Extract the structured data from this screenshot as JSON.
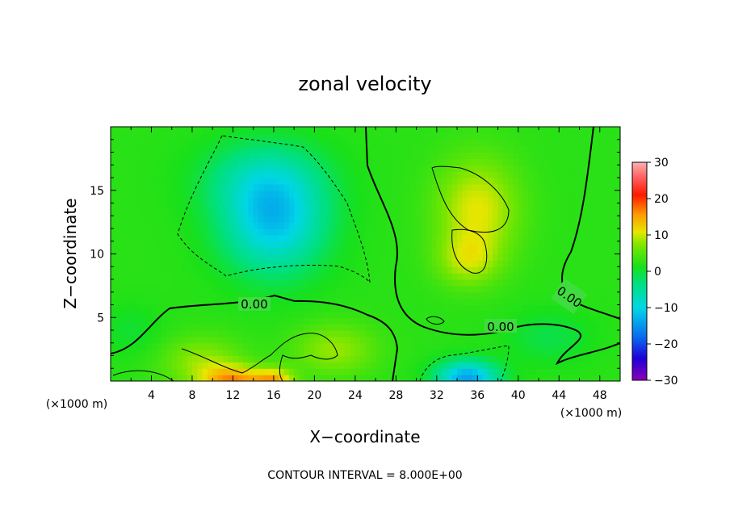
{
  "chart_data": {
    "type": "heatmap",
    "title": "zonal velocity",
    "xlabel": "X−coordinate",
    "ylabel": "Z−coordinate",
    "x_unit_left": "(×1000 m)",
    "x_unit_right": "(×1000 m)",
    "xlim": [
      0,
      50
    ],
    "ylim": [
      0,
      20
    ],
    "x_ticks": [
      "4",
      "8",
      "12",
      "16",
      "20",
      "24",
      "28",
      "32",
      "36",
      "40",
      "44",
      "48"
    ],
    "y_ticks": [
      "5",
      "10",
      "15"
    ],
    "colorbar": {
      "min": -30,
      "max": 30,
      "ticks": [
        "30",
        "20",
        "10",
        "0",
        "−10",
        "−20",
        "−30"
      ]
    },
    "contour_interval_text": "CONTOUR INTERVAL = 8.000E+00",
    "contour_labels": [
      "0.00",
      "0.00",
      "0.00"
    ],
    "field_features": [
      {
        "x": 16,
        "z": 12.5,
        "value": -13,
        "sx": 5,
        "sz": 4
      },
      {
        "x": 15,
        "z": 16,
        "value": -6,
        "sx": 6,
        "sz": 3
      },
      {
        "x": 12,
        "z": 0,
        "value": 13,
        "sx": 3,
        "sz": 1.2
      },
      {
        "x": 16,
        "z": 0,
        "value": 12,
        "sx": 2,
        "sz": 1
      },
      {
        "x": 9,
        "z": 1.5,
        "value": 6,
        "sx": 4,
        "sz": 2
      },
      {
        "x": 22,
        "z": 2.5,
        "value": 6,
        "sx": 4,
        "sz": 2
      },
      {
        "x": 36,
        "z": 13.5,
        "value": 9,
        "sx": 4,
        "sz": 4
      },
      {
        "x": 35,
        "z": 9.5,
        "value": 6,
        "sx": 3,
        "sz": 2
      },
      {
        "x": 35,
        "z": 0.3,
        "value": -16,
        "sx": 3,
        "sz": 1.3
      },
      {
        "x": 43,
        "z": 3.5,
        "value": -3,
        "sx": 4,
        "sz": 2
      },
      {
        "x": 2,
        "z": 4,
        "value": -2,
        "sx": 3,
        "sz": 2
      }
    ],
    "background_value": 2,
    "grid": false,
    "legend_position": "right"
  }
}
